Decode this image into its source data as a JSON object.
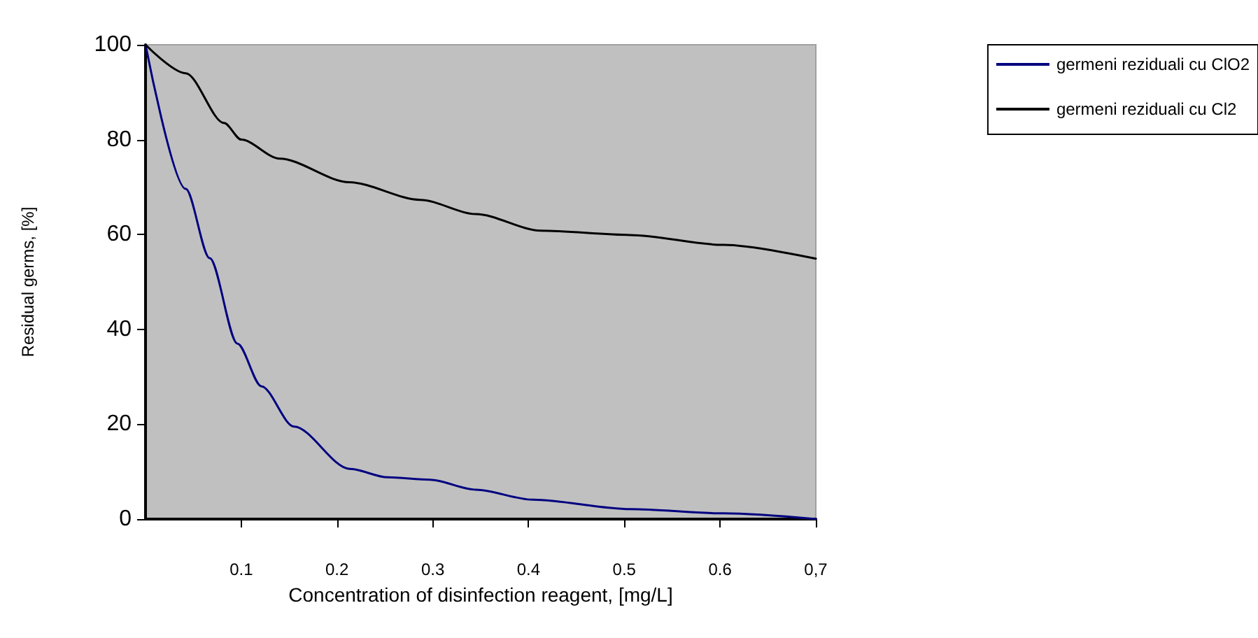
{
  "chart_data": {
    "type": "line",
    "xlabel": "Concentration of disinfection reagent, [mg/L]",
    "ylabel": "Residual germs, [%]",
    "xlim": [
      0,
      0.7
    ],
    "xticks": [
      0.1,
      0.2,
      0.3,
      0.4,
      0.5,
      0.6,
      {
        "value": 0.7,
        "label": "0,7"
      }
    ],
    "ylim": [
      0,
      100
    ],
    "yticks": [
      0,
      20,
      40,
      60,
      80,
      100
    ],
    "grid": false,
    "legend": "top right",
    "marker": "none",
    "line_style": "solid",
    "series": [
      {
        "name": "germeni reziduali cu ClO2",
        "color": "#000080",
        "x": [
          0,
          0.042,
          0.067,
          0.096,
          0.121,
          0.155,
          0.213,
          0.253,
          0.297,
          0.345,
          0.404,
          0.506,
          0.604,
          0.7
        ],
        "values": [
          100,
          69.6,
          55,
          37,
          28,
          19.5,
          10.6,
          8.8,
          8.3,
          6.2,
          4.1,
          2.1,
          1.2,
          0
        ]
      },
      {
        "name": "germeni reziduali cu Cl2",
        "color": "#000000",
        "x": [
          0,
          0.042,
          0.082,
          0.1,
          0.14,
          0.213,
          0.287,
          0.345,
          0.413,
          0.506,
          0.604,
          0.7
        ],
        "values": [
          100,
          94,
          83.5,
          80,
          76,
          71,
          67.3,
          64.3,
          60.8,
          59.9,
          57.8,
          54.9
        ]
      }
    ]
  }
}
